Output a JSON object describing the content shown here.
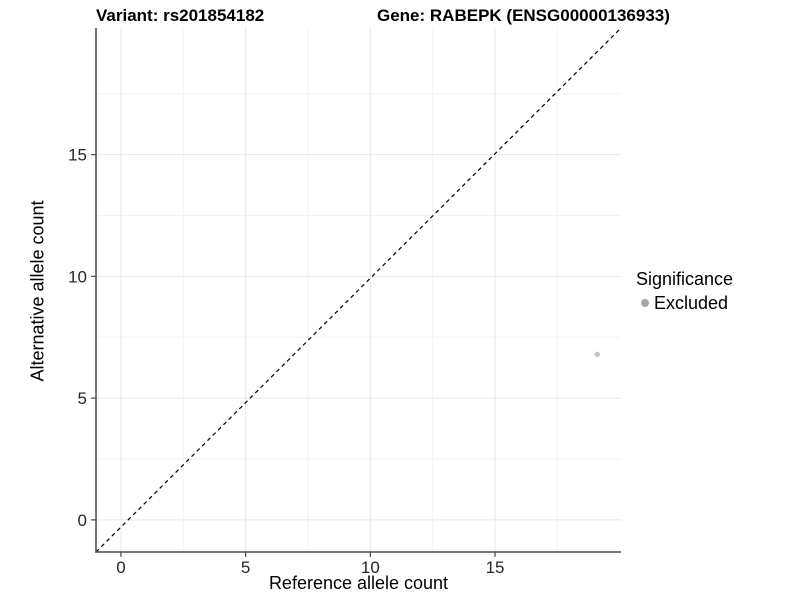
{
  "titles": {
    "variant": "Variant: rs201854182",
    "gene": "Gene: RABEPK (ENSG00000136933)"
  },
  "x_axis": {
    "title": "Reference allele count",
    "tick_labels": [
      "0",
      "5",
      "10",
      "15"
    ]
  },
  "y_axis": {
    "title": "Alternative allele count",
    "tick_labels": [
      "0",
      "5",
      "10",
      "15"
    ]
  },
  "legend": {
    "title": "Significance",
    "items": [
      {
        "label": "Excluded",
        "color": "#a6a6a6"
      }
    ]
  },
  "colors": {
    "background": "#ffffff",
    "point": "#c3c3c3",
    "axis_line": "#4a4a4a",
    "tick_label": "#262626",
    "grid_major": "#e8e8e8",
    "grid_minor": "#f3f3f3",
    "identity_line": "#000000"
  },
  "chart_data": {
    "type": "scatter",
    "title": "Variant: rs201854182 / Gene: RABEPK (ENSG00000136933)",
    "xlabel": "Reference allele count",
    "ylabel": "Alternative allele count",
    "xlim": [
      -1.0,
      20.05
    ],
    "ylim": [
      -1.32,
      20.2
    ],
    "x_ticks": [
      0,
      5,
      10,
      15
    ],
    "y_ticks": [
      0,
      5,
      10,
      15
    ],
    "x_minor_ticks": [
      2.5,
      7.5,
      12.5,
      17.5
    ],
    "y_minor_ticks": [
      2.5,
      7.5,
      12.5,
      17.5
    ],
    "grid": "major and minor gridlines, very light gray on white panel",
    "legend_position": "right",
    "series": [
      {
        "name": "Excluded",
        "color": "#c3c3c3",
        "points": [
          {
            "x": 19.1,
            "y": 6.8
          }
        ]
      }
    ],
    "reference_line": {
      "type": "identity",
      "slope": 1,
      "intercept": 0,
      "linetype": "dashed",
      "color": "#000000"
    }
  }
}
